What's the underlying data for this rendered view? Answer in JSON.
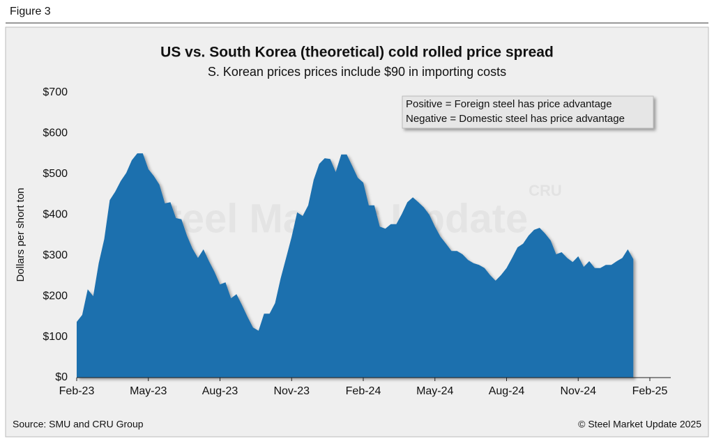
{
  "figure_label": "Figure 3",
  "chart_data": {
    "type": "area",
    "title": "US vs. South Korea (theoretical) cold rolled price spread",
    "subtitle": "S. Korean prices prices include $90 in importing costs",
    "y_label": "Dollars per short ton",
    "annotations": [
      "Positive = Foreign steel has price advantage",
      "Negative = Domestic steel has price advantage"
    ],
    "watermark": "Steel Market Update",
    "watermark_logo": "CRU",
    "color": "#1b6fae",
    "categories": [
      "Feb-23",
      null,
      null,
      null,
      null,
      null,
      null,
      null,
      null,
      null,
      null,
      null,
      null,
      "May-23",
      null,
      null,
      null,
      null,
      null,
      null,
      null,
      null,
      null,
      null,
      null,
      null,
      "Aug-23",
      null,
      null,
      null,
      null,
      null,
      null,
      null,
      null,
      null,
      null,
      null,
      null,
      "Nov-23",
      null,
      null,
      null,
      null,
      null,
      null,
      null,
      null,
      null,
      null,
      null,
      null,
      "Feb-24",
      null,
      null,
      null,
      null,
      null,
      null,
      null,
      null,
      null,
      null,
      null,
      null,
      "May-24",
      null,
      null,
      null,
      null,
      null,
      null,
      null,
      null,
      null,
      null,
      null,
      null,
      "Aug-24",
      null,
      null,
      null,
      null,
      null,
      null,
      null,
      null,
      null,
      null,
      null,
      null,
      "Nov-24",
      null,
      null,
      null,
      null,
      null,
      null,
      null,
      null,
      null,
      null,
      null,
      null,
      "Feb-25"
    ],
    "values": [
      137,
      154,
      217,
      200,
      281,
      340,
      436,
      457,
      483,
      503,
      534,
      551,
      551,
      512,
      495,
      474,
      428,
      431,
      392,
      389,
      349,
      317,
      294,
      315,
      286,
      260,
      229,
      234,
      195,
      205,
      178,
      149,
      123,
      115,
      157,
      157,
      183,
      243,
      294,
      346,
      406,
      397,
      423,
      486,
      525,
      539,
      537,
      505,
      548,
      548,
      520,
      491,
      479,
      423,
      423,
      371,
      366,
      377,
      377,
      402,
      431,
      443,
      431,
      418,
      400,
      371,
      346,
      329,
      311,
      311,
      303,
      289,
      281,
      277,
      269,
      252,
      238,
      252,
      269,
      294,
      320,
      329,
      349,
      363,
      368,
      354,
      337,
      303,
      308,
      294,
      284,
      298,
      272,
      286,
      269,
      269,
      277,
      277,
      286,
      294,
      315,
      291,
      null,
      null,
      null
    ],
    "ylim": [
      0,
      700
    ],
    "yticks": [
      {
        "value": 0,
        "label": "$0"
      },
      {
        "value": 100,
        "label": "$100"
      },
      {
        "value": 200,
        "label": "$200"
      },
      {
        "value": 300,
        "label": "$300"
      },
      {
        "value": 400,
        "label": "$400"
      },
      {
        "value": 500,
        "label": "$500"
      },
      {
        "value": 600,
        "label": "$600"
      },
      {
        "value": 700,
        "label": "$700"
      }
    ],
    "grid": false
  },
  "footer": {
    "source": "Source: SMU and CRU Group",
    "copyright": "© Steel Market Update 2025"
  }
}
